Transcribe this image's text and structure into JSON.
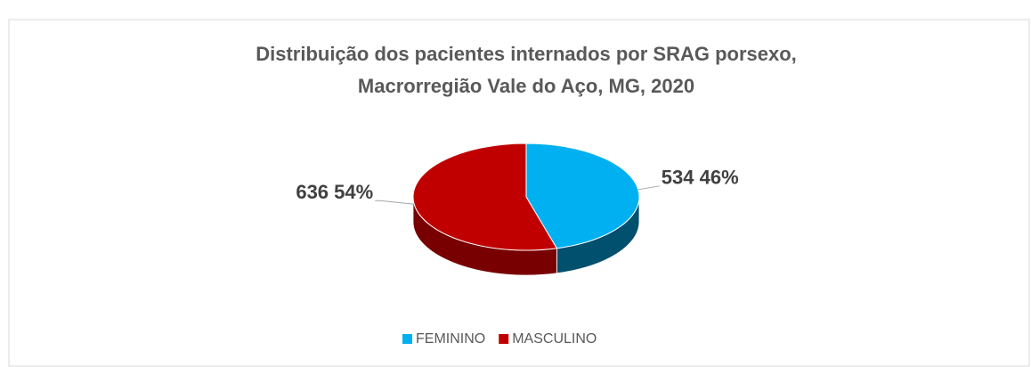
{
  "chart_data": {
    "type": "pie",
    "title": [
      "Distribuição dos pacientes internados por SRAG porsexo,",
      "Macrorregião Vale do Aço, MG, 2020"
    ],
    "categories": [
      "FEMININO",
      "MASCULINO"
    ],
    "values": [
      534,
      636
    ],
    "value_labels": [
      "534 46%",
      "636 54%"
    ],
    "colors": [
      "#00b0f0",
      "#c00000"
    ],
    "side_colors": [
      "#00506e",
      "#780000"
    ],
    "legend": "bottom"
  }
}
